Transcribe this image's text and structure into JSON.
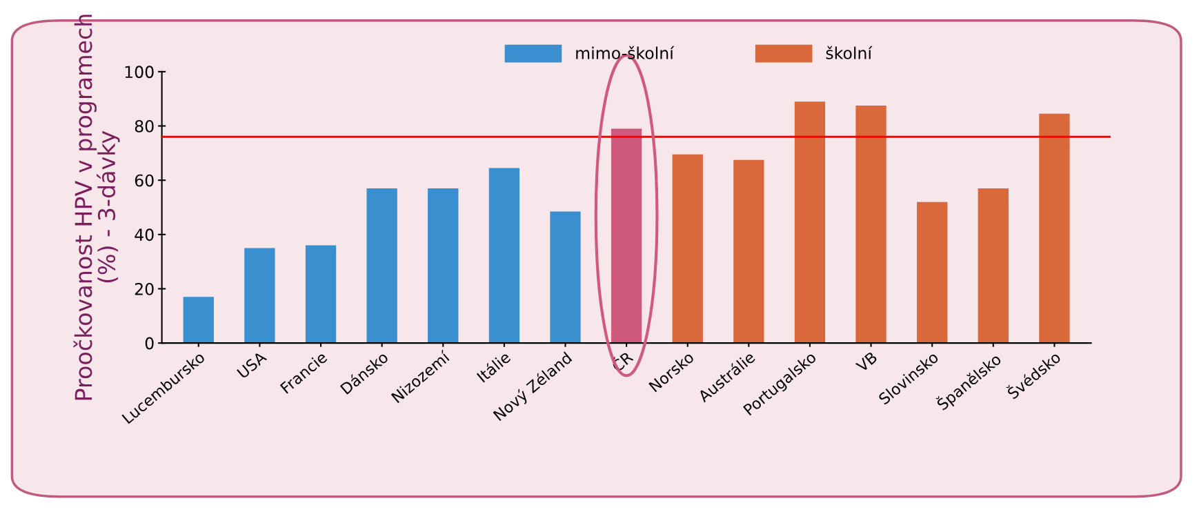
{
  "chart_data": {
    "type": "bar",
    "ylabel": "Proočkovanost HPV v programech\n(%) - 3-dávky",
    "categories": [
      "Lucembursko",
      "USA",
      "Francie",
      "Dánsko",
      "Nizozemí",
      "Itálie",
      "Nový Zéland",
      "ČR",
      "Norsko",
      "Austrálie",
      "Portugalsko",
      "VB",
      "Slovinsko",
      "Španělsko",
      "Švédsko"
    ],
    "series": [
      {
        "name": "mimo-školní",
        "color": "#3a8fcf",
        "values": [
          17,
          35,
          36,
          57,
          57,
          64.5,
          48.5,
          null,
          null,
          null,
          null,
          null,
          null,
          null,
          null
        ]
      },
      {
        "name": "školní",
        "color": "#d9693a",
        "values": [
          null,
          null,
          null,
          null,
          null,
          null,
          null,
          null,
          69.5,
          67.5,
          89,
          87.5,
          52,
          57,
          84.5
        ]
      },
      {
        "color": "#d05a7e",
        "values": [
          null,
          null,
          null,
          null,
          null,
          null,
          null,
          79,
          null,
          null,
          null,
          null,
          null,
          null,
          null
        ]
      }
    ],
    "ylim": [
      0,
      100
    ],
    "yticks": [
      0,
      20,
      40,
      60,
      80,
      100
    ],
    "ref_lines": [
      {
        "axis": "y",
        "value": 76,
        "color": "#ff0000"
      }
    ],
    "legend": "top right",
    "grid": false
  }
}
